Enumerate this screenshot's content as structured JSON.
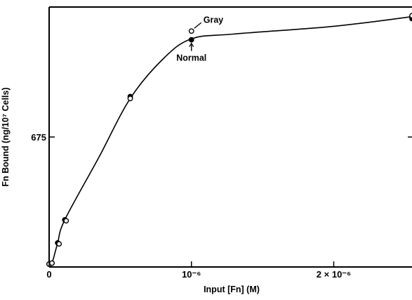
{
  "chart_data": {
    "type": "line",
    "xlabel": "Input [Fn] (M)",
    "ylabel": "Fn Bound (ng/10⁷ Cells)",
    "x_tick_labels": [
      {
        "x": 0,
        "label": "0"
      },
      {
        "x": 1e-06,
        "label": "10⁻⁶"
      },
      {
        "x": 2e-06,
        "label": "2 × 10⁻⁶"
      }
    ],
    "y_tick_labels": [
      {
        "y": 675,
        "label": "675"
      }
    ],
    "xlim": [
      0,
      2.55e-06
    ],
    "ylim": [
      0,
      1350
    ],
    "grid": false,
    "series": [
      {
        "name": "Normal",
        "marker": "filled",
        "x": [
          0.0,
          2e-08,
          6e-08,
          1.1e-07,
          5.7e-07,
          1e-06,
          2.55e-06
        ],
        "y": [
          15,
          20,
          125,
          245,
          885,
          1180,
          1290
        ]
      },
      {
        "name": "Gray",
        "marker": "open",
        "x": [
          0.0,
          2e-08,
          7e-08,
          1.2e-07,
          5.7e-07,
          1e-06,
          2.55e-06
        ],
        "y": [
          15,
          20,
          120,
          240,
          875,
          1225,
          1305
        ]
      }
    ],
    "fit_curve": {
      "x": [
        0,
        2e-08,
        6e-08,
        1.1e-07,
        3.5e-07,
        5.7e-07,
        8e-07,
        1e-06,
        1.3e-06,
        2e-06,
        2.55e-06
      ],
      "y": [
        15,
        20,
        125,
        245,
        570,
        875,
        1080,
        1185,
        1210,
        1250,
        1300
      ]
    },
    "annotations": [
      {
        "text": "Gray",
        "series": "Gray",
        "x": 1e-06,
        "y": 1225
      },
      {
        "text": "Normal",
        "series": "Normal",
        "x": 1e-06,
        "y": 1180
      }
    ]
  }
}
